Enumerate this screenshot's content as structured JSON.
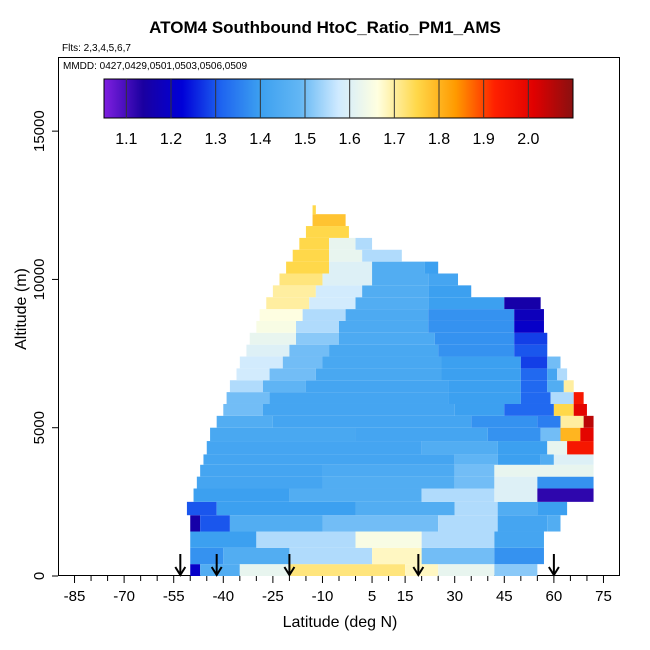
{
  "header": {
    "title": "ATOM4 Southbound HtoC_Ratio_PM1_AMS",
    "flights": "Flts: 2,3,4,5,6,7",
    "dates": "MMDD: 0427,0429,0501,0503,0506,0509"
  },
  "chart_data": {
    "type": "heatmap",
    "title": "ATOM4 Southbound HtoC_Ratio_PM1_AMS",
    "xlabel": "Latitude (deg N)",
    "ylabel": "Altitude (m)",
    "xlim": [
      -90,
      80
    ],
    "ylim": [
      0,
      17500
    ],
    "x_ticks": [
      -85,
      -70,
      -55,
      -40,
      -25,
      -10,
      5,
      15,
      30,
      45,
      60,
      75
    ],
    "x_tick_labels": [
      "-85",
      "-70",
      "-55",
      "-40",
      "-25",
      "-10",
      "5",
      "15",
      "30",
      "45",
      "60",
      "75"
    ],
    "x_minor_ticks": [
      -80,
      -75,
      -65,
      -60,
      -50,
      -45,
      -35,
      -30,
      -20,
      -15,
      -5,
      0,
      10,
      20,
      25,
      35,
      40,
      50,
      55,
      65,
      70
    ],
    "y_ticks": [
      0,
      5000,
      10000,
      15000
    ],
    "y_tick_labels": [
      "0",
      "5000",
      "10000",
      "15000"
    ],
    "colorbar": {
      "min": 1.05,
      "max": 2.1,
      "ticks": [
        1.1,
        1.2,
        1.3,
        1.4,
        1.5,
        1.6,
        1.7,
        1.8,
        1.9,
        2.0
      ],
      "tick_labels": [
        "1.1",
        "1.2",
        "1.3",
        "1.4",
        "1.5",
        "1.6",
        "1.7",
        "1.8",
        "1.9",
        "2.0"
      ],
      "colors": [
        "#7f1fe0",
        "#1a00a0",
        "#0000d8",
        "#1e64f0",
        "#3ca0f0",
        "#62b6f4",
        "#cfeaff",
        "#ffffe0",
        "#ffd84a",
        "#ff9a00",
        "#ff2000",
        "#e00000",
        "#8a1010"
      ]
    },
    "bands": [
      {
        "y0": 0,
        "y1": 400,
        "segments": [
          [
            -50,
            -47,
            1.2
          ],
          [
            -47,
            -35,
            1.45
          ],
          [
            -35,
            -20,
            1.62
          ],
          [
            -20,
            15,
            1.72
          ],
          [
            15,
            25,
            1.68
          ],
          [
            25,
            42,
            1.62
          ],
          [
            42,
            55,
            1.52
          ]
        ]
      },
      {
        "y0": 400,
        "y1": 950,
        "segments": [
          [
            -50,
            -40,
            1.38
          ],
          [
            -40,
            -20,
            1.45
          ],
          [
            -20,
            5,
            1.55
          ],
          [
            5,
            20,
            1.68
          ],
          [
            20,
            42,
            1.5
          ],
          [
            42,
            57,
            1.38
          ]
        ]
      },
      {
        "y0": 950,
        "y1": 1500,
        "segments": [
          [
            -50,
            -30,
            1.4
          ],
          [
            -30,
            0,
            1.55
          ],
          [
            0,
            20,
            1.65
          ],
          [
            20,
            42,
            1.55
          ],
          [
            42,
            57,
            1.42
          ]
        ]
      },
      {
        "y0": 1500,
        "y1": 2050,
        "segments": [
          [
            -50,
            -47,
            1.15
          ],
          [
            -47,
            -38,
            1.3
          ],
          [
            -38,
            -10,
            1.45
          ],
          [
            -10,
            25,
            1.5
          ],
          [
            25,
            43,
            1.55
          ],
          [
            43,
            58,
            1.42
          ],
          [
            58,
            62,
            1.45
          ]
        ]
      },
      {
        "y0": 2050,
        "y1": 2500,
        "segments": [
          [
            -51,
            -42,
            1.3
          ],
          [
            -42,
            0,
            1.4
          ],
          [
            0,
            30,
            1.45
          ],
          [
            30,
            43,
            1.55
          ],
          [
            43,
            55,
            1.45
          ],
          [
            55,
            64,
            1.4
          ]
        ]
      },
      {
        "y0": 2500,
        "y1": 2950,
        "segments": [
          [
            -49,
            -20,
            1.4
          ],
          [
            -20,
            20,
            1.45
          ],
          [
            20,
            42,
            1.55
          ],
          [
            42,
            55,
            1.6
          ],
          [
            55,
            72,
            1.12
          ]
        ]
      },
      {
        "y0": 2950,
        "y1": 3350,
        "segments": [
          [
            -48,
            -10,
            1.42
          ],
          [
            -10,
            30,
            1.45
          ],
          [
            30,
            42,
            1.5
          ],
          [
            42,
            55,
            1.6
          ],
          [
            55,
            72,
            1.38
          ]
        ]
      },
      {
        "y0": 3350,
        "y1": 3750,
        "segments": [
          [
            -47,
            -10,
            1.42
          ],
          [
            -10,
            30,
            1.44
          ],
          [
            30,
            42,
            1.5
          ],
          [
            42,
            72,
            1.62
          ]
        ]
      },
      {
        "y0": 3750,
        "y1": 4100,
        "segments": [
          [
            -46,
            30,
            1.42
          ],
          [
            30,
            43,
            1.48
          ],
          [
            43,
            56,
            1.4
          ],
          [
            56,
            60,
            1.45
          ],
          [
            60,
            72,
            1.6
          ]
        ]
      },
      {
        "y0": 4100,
        "y1": 4550,
        "segments": [
          [
            -45,
            20,
            1.42
          ],
          [
            20,
            43,
            1.45
          ],
          [
            43,
            58,
            1.4
          ],
          [
            58,
            64,
            1.62
          ],
          [
            64,
            72,
            1.95
          ]
        ]
      },
      {
        "y0": 4550,
        "y1": 5000,
        "segments": [
          [
            -44,
            0,
            1.43
          ],
          [
            0,
            40,
            1.42
          ],
          [
            40,
            56,
            1.38
          ],
          [
            56,
            62,
            1.5
          ],
          [
            62,
            68,
            1.8
          ],
          [
            68,
            72,
            2.0
          ]
        ]
      },
      {
        "y0": 5000,
        "y1": 5400,
        "segments": [
          [
            -42,
            -25,
            1.45
          ],
          [
            -25,
            35,
            1.42
          ],
          [
            35,
            55,
            1.38
          ],
          [
            55,
            62,
            1.35
          ],
          [
            62,
            69,
            1.7
          ],
          [
            69,
            72,
            2.05
          ]
        ]
      },
      {
        "y0": 5400,
        "y1": 5800,
        "segments": [
          [
            -40,
            -28,
            1.5
          ],
          [
            -28,
            30,
            1.42
          ],
          [
            30,
            45,
            1.4
          ],
          [
            45,
            60,
            1.32
          ],
          [
            60,
            66,
            1.75
          ],
          [
            66,
            70,
            2.0
          ]
        ]
      },
      {
        "y0": 5800,
        "y1": 6200,
        "segments": [
          [
            -39,
            -26,
            1.5
          ],
          [
            -26,
            28,
            1.42
          ],
          [
            28,
            50,
            1.4
          ],
          [
            50,
            59,
            1.32
          ],
          [
            59,
            66,
            1.55
          ],
          [
            66,
            69,
            1.95
          ]
        ]
      },
      {
        "y0": 6200,
        "y1": 6600,
        "segments": [
          [
            -38,
            -28,
            1.55
          ],
          [
            -28,
            -15,
            1.48
          ],
          [
            -15,
            28,
            1.42
          ],
          [
            28,
            50,
            1.4
          ],
          [
            50,
            58,
            1.32
          ],
          [
            58,
            63,
            1.45
          ],
          [
            63,
            66,
            1.7
          ]
        ]
      },
      {
        "y0": 6600,
        "y1": 7000,
        "segments": [
          [
            -36,
            -26,
            1.58
          ],
          [
            -26,
            -12,
            1.5
          ],
          [
            -12,
            26,
            1.43
          ],
          [
            26,
            50,
            1.4
          ],
          [
            50,
            58,
            1.32
          ],
          [
            58,
            61,
            1.42
          ],
          [
            61,
            64,
            1.55
          ]
        ]
      },
      {
        "y0": 7000,
        "y1": 7400,
        "segments": [
          [
            -35,
            -22,
            1.58
          ],
          [
            -22,
            -10,
            1.5
          ],
          [
            -10,
            26,
            1.43
          ],
          [
            26,
            50,
            1.4
          ],
          [
            50,
            58,
            1.28
          ],
          [
            58,
            62,
            1.5
          ]
        ]
      },
      {
        "y0": 7400,
        "y1": 7800,
        "segments": [
          [
            -33,
            -20,
            1.6
          ],
          [
            -20,
            -8,
            1.5
          ],
          [
            -8,
            25,
            1.43
          ],
          [
            25,
            48,
            1.38
          ],
          [
            48,
            58,
            1.3
          ]
        ]
      },
      {
        "y0": 7800,
        "y1": 8200,
        "segments": [
          [
            -32,
            -18,
            1.62
          ],
          [
            -18,
            -5,
            1.52
          ],
          [
            -5,
            24,
            1.44
          ],
          [
            24,
            48,
            1.38
          ],
          [
            48,
            58,
            1.28
          ]
        ]
      },
      {
        "y0": 8200,
        "y1": 8600,
        "segments": [
          [
            -30,
            -18,
            1.65
          ],
          [
            -18,
            -5,
            1.55
          ],
          [
            -5,
            22,
            1.44
          ],
          [
            22,
            48,
            1.38
          ],
          [
            48,
            57,
            1.2
          ]
        ]
      },
      {
        "y0": 8600,
        "y1": 9000,
        "segments": [
          [
            -29,
            -16,
            1.66
          ],
          [
            -16,
            -3,
            1.55
          ],
          [
            -3,
            22,
            1.44
          ],
          [
            22,
            48,
            1.38
          ],
          [
            48,
            57,
            1.18
          ]
        ]
      },
      {
        "y0": 9000,
        "y1": 9400,
        "segments": [
          [
            -27,
            -14,
            1.7
          ],
          [
            -14,
            0,
            1.58
          ],
          [
            0,
            22,
            1.45
          ],
          [
            22,
            45,
            1.4
          ],
          [
            45,
            56,
            1.15
          ]
        ]
      },
      {
        "y0": 9400,
        "y1": 9800,
        "segments": [
          [
            -25,
            -12,
            1.7
          ],
          [
            -12,
            2,
            1.58
          ],
          [
            2,
            22,
            1.45
          ],
          [
            22,
            35,
            1.4
          ]
        ]
      },
      {
        "y0": 9800,
        "y1": 10200,
        "segments": [
          [
            -23,
            -10,
            1.72
          ],
          [
            -10,
            5,
            1.6
          ],
          [
            5,
            22,
            1.45
          ],
          [
            22,
            31,
            1.42
          ]
        ]
      },
      {
        "y0": 10200,
        "y1": 10600,
        "segments": [
          [
            -21,
            -8,
            1.75
          ],
          [
            -8,
            5,
            1.6
          ],
          [
            5,
            21,
            1.45
          ],
          [
            21,
            25,
            1.4
          ]
        ]
      },
      {
        "y0": 10600,
        "y1": 11000,
        "segments": [
          [
            -19,
            -8,
            1.75
          ],
          [
            -8,
            2,
            1.62
          ],
          [
            2,
            14,
            1.55
          ]
        ]
      },
      {
        "y0": 11000,
        "y1": 11400,
        "segments": [
          [
            -17,
            -8,
            1.75
          ],
          [
            -8,
            0,
            1.62
          ],
          [
            0,
            5,
            1.55
          ]
        ]
      },
      {
        "y0": 11400,
        "y1": 11800,
        "segments": [
          [
            -15,
            -2,
            1.75
          ]
        ]
      },
      {
        "y0": 11800,
        "y1": 12200,
        "segments": [
          [
            -13,
            -3,
            1.78
          ]
        ]
      },
      {
        "y0": 12200,
        "y1": 12500,
        "segments": [
          [
            -13,
            -12,
            1.75
          ]
        ]
      }
    ],
    "flight_markers_lat": [
      -53,
      -42,
      -20,
      19,
      60
    ]
  }
}
